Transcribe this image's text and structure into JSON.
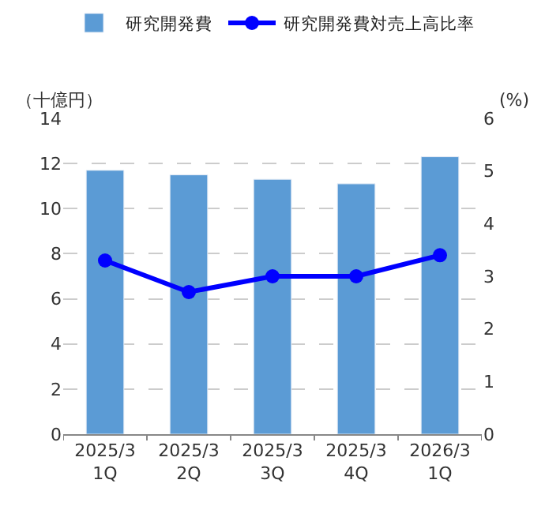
{
  "chart_data": {
    "type": "bar",
    "ylabel": "（十億円）",
    "y2label": "(%)",
    "categories": [
      "2025/3\n1Q",
      "2025/3\n2Q",
      "2025/3\n3Q",
      "2025/3\n4Q",
      "2026/3\n1Q"
    ],
    "series": [
      {
        "name": "研究開発費",
        "color": "#5b9bd5",
        "values": [
          11.7,
          11.5,
          11.3,
          11.1,
          12.3
        ]
      },
      {
        "name": "研究開発費対売上高比率",
        "type": "line",
        "axis": "y2",
        "color": "#0000ff",
        "marker": "circle",
        "values": [
          3.3,
          2.7,
          3.0,
          3.0,
          3.4
        ]
      }
    ],
    "ylim": [
      0,
      14
    ],
    "yticks": [
      0,
      2,
      4,
      6,
      8,
      10,
      12,
      14
    ],
    "y2lim": [
      0,
      6
    ],
    "y2ticks": [
      0,
      1,
      2,
      3,
      4,
      5,
      6
    ],
    "grid": "y",
    "legend": "top"
  }
}
